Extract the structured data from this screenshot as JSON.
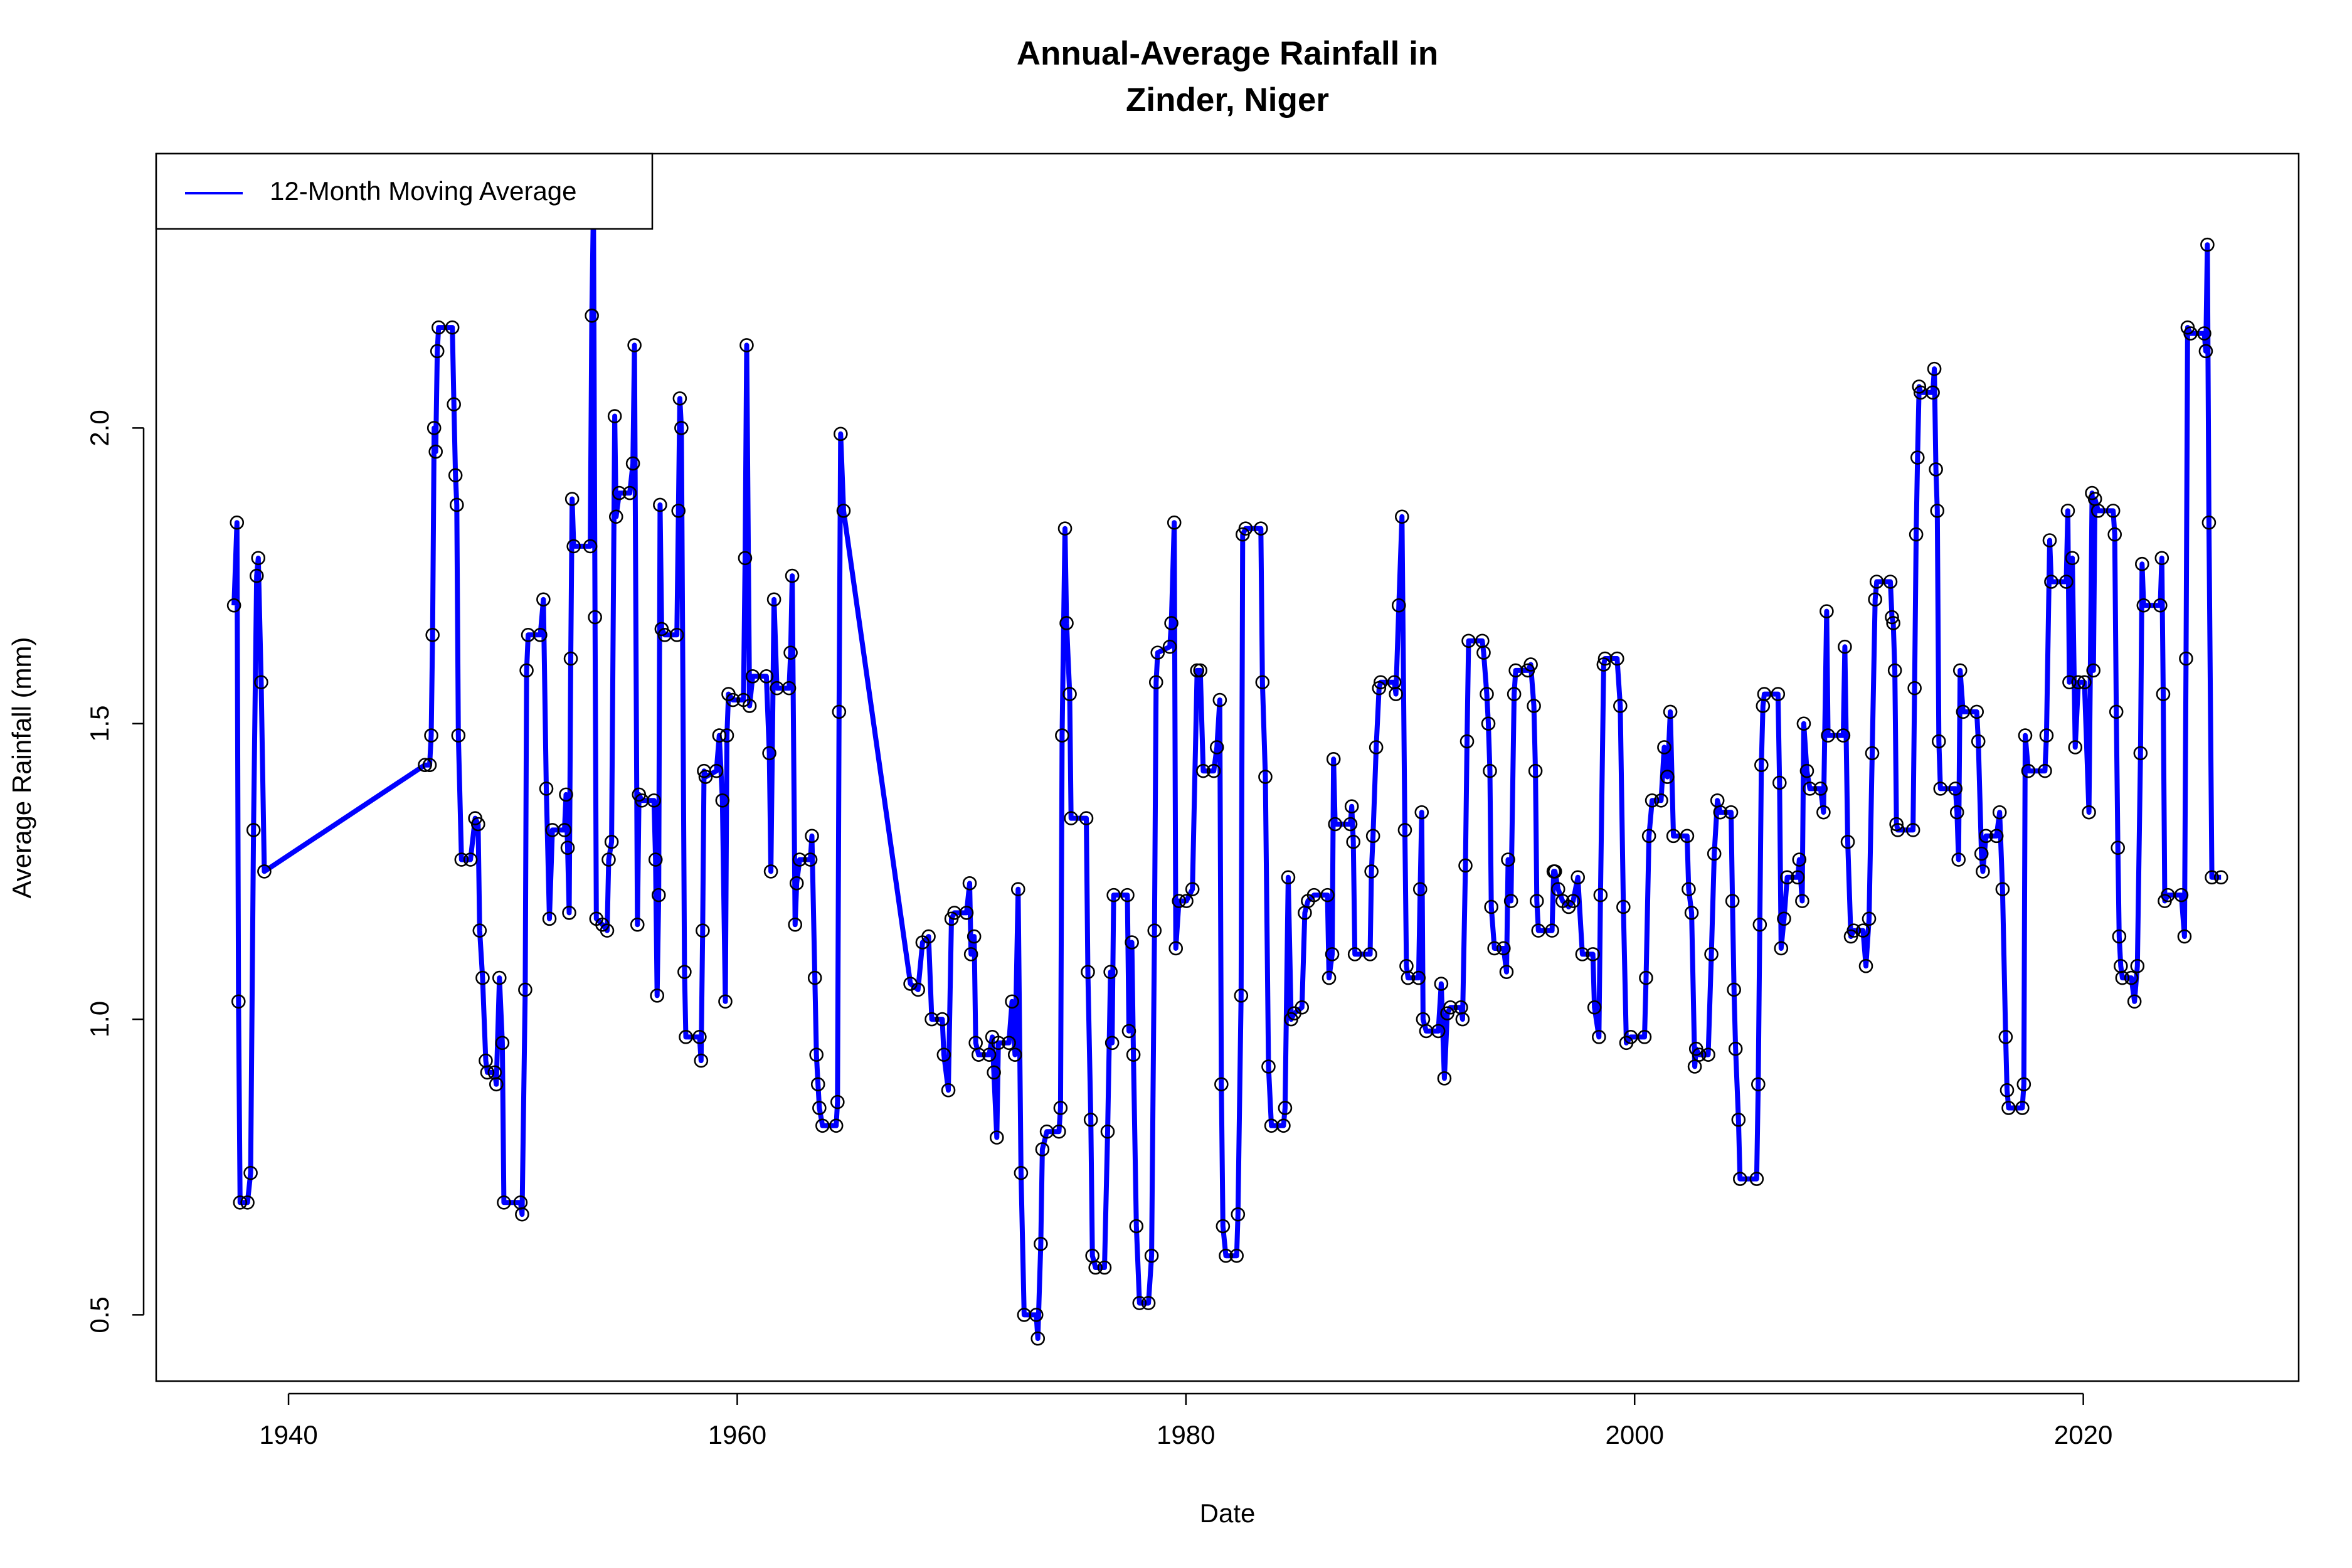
{
  "chart_data": {
    "type": "line",
    "title": [
      "Annual-Average Rainfall in",
      "Zinder, Niger"
    ],
    "x_label": "Date",
    "y_label": "Average Rainfall (mm)",
    "xlim": [
      1934.1,
      2029.6
    ],
    "ylim": [
      0.388,
      2.464
    ],
    "xticks": [
      1940,
      1960,
      1980,
      2000,
      2020
    ],
    "yticks": [
      0.5,
      {
        "value": 1,
        "label": "1.0"
      },
      1.5,
      {
        "value": 2,
        "label": "2.0"
      }
    ],
    "grid": false,
    "markers": true,
    "legend": "top-left",
    "x": [
      1937.57,
      1937.7,
      1937.77,
      1937.84,
      1938.17,
      1938.31,
      1938.44,
      1938.58,
      1938.65,
      1938.78,
      1938.92,
      1946.08,
      1946.29,
      1946.36,
      1946.42,
      1946.49,
      1946.56,
      1946.63,
      1946.69,
      1947.3,
      1947.37,
      1947.44,
      1947.5,
      1947.57,
      1947.71,
      1948.11,
      1948.32,
      1948.45,
      1948.52,
      1948.65,
      1948.79,
      1948.86,
      1949.19,
      1949.26,
      1949.4,
      1949.53,
      1949.6,
      1950.34,
      1950.41,
      1950.55,
      1950.61,
      1950.68,
      1951.22,
      1951.36,
      1951.49,
      1951.63,
      1951.76,
      1952.3,
      1952.37,
      1952.44,
      1952.51,
      1952.58,
      1952.64,
      1952.71,
      1953.45,
      1953.52,
      1953.59,
      1953.66,
      1953.72,
      1953.99,
      1954.2,
      1954.27,
      1954.4,
      1954.54,
      1954.6,
      1954.74,
      1955.21,
      1955.35,
      1955.42,
      1955.55,
      1955.62,
      1955.75,
      1956.29,
      1956.36,
      1956.43,
      1956.5,
      1956.56,
      1956.63,
      1956.77,
      1957.31,
      1957.38,
      1957.44,
      1957.51,
      1957.65,
      1957.71,
      1958.32,
      1958.39,
      1958.46,
      1958.52,
      1958.59,
      1959.07,
      1959.2,
      1959.34,
      1959.47,
      1959.54,
      1959.61,
      1959.81,
      1960.28,
      1960.35,
      1960.42,
      1960.55,
      1960.69,
      1961.3,
      1961.43,
      1961.5,
      1961.64,
      1961.77,
      1962.31,
      1962.38,
      1962.45,
      1962.58,
      1962.65,
      1962.78,
      1963.26,
      1963.33,
      1963.46,
      1963.53,
      1963.6,
      1963.66,
      1963.8,
      1964.41,
      1964.47,
      1964.54,
      1964.61,
      1964.74,
      1967.72,
      1968.06,
      1968.26,
      1968.53,
      1968.67,
      1969.14,
      1969.21,
      1969.41,
      1969.55,
      1969.68,
      1970.22,
      1970.36,
      1970.42,
      1970.56,
      1970.63,
      1970.76,
      1971.23,
      1971.37,
      1971.44,
      1971.57,
      1971.64,
      1972.11,
      1972.25,
      1972.38,
      1972.52,
      1972.65,
      1972.79,
      1973.33,
      1973.4,
      1973.53,
      1973.6,
      1973.8,
      1974.34,
      1974.41,
      1974.48,
      1974.61,
      1974.68,
      1974.82,
      1974.88,
      1975.56,
      1975.63,
      1975.76,
      1975.83,
      1975.97,
      1976.37,
      1976.51,
      1976.64,
      1976.71,
      1976.78,
      1977.39,
      1977.46,
      1977.59,
      1977.66,
      1977.79,
      1977.93,
      1978.33,
      1978.47,
      1978.6,
      1978.67,
      1978.74,
      1979.28,
      1979.35,
      1979.48,
      1979.55,
      1979.69,
      1980.02,
      1980.29,
      1980.5,
      1980.64,
      1980.77,
      1981.24,
      1981.38,
      1981.51,
      1981.58,
      1981.65,
      1981.78,
      1982.26,
      1982.32,
      1982.46,
      1982.53,
      1982.66,
      1983.34,
      1983.41,
      1983.54,
      1983.68,
      1983.81,
      1984.35,
      1984.42,
      1984.56,
      1984.69,
      1984.83,
      1985.17,
      1985.3,
      1985.44,
      1985.71,
      1986.31,
      1986.38,
      1986.52,
      1986.58,
      1986.65,
      1987.33,
      1987.39,
      1987.46,
      1987.53,
      1988.21,
      1988.27,
      1988.34,
      1988.48,
      1988.61,
      1988.68,
      1989.29,
      1989.36,
      1989.49,
      1989.63,
      1989.76,
      1989.83,
      1989.9,
      1990.37,
      1990.44,
      1990.51,
      1990.57,
      1990.71,
      1991.25,
      1991.38,
      1991.52,
      1991.65,
      1991.79,
      1992.26,
      1992.33,
      1992.46,
      1992.53,
      1992.6,
      1993.21,
      1993.27,
      1993.41,
      1993.48,
      1993.55,
      1993.61,
      1993.75,
      1994.16,
      1994.29,
      1994.36,
      1994.49,
      1994.63,
      1994.7,
      1995.24,
      1995.37,
      1995.51,
      1995.58,
      1995.64,
      1995.71,
      1996.32,
      1996.39,
      1996.45,
      1996.59,
      1996.79,
      1997.06,
      1997.26,
      1997.47,
      1997.67,
      1998.14,
      1998.21,
      1998.41,
      1998.48,
      1998.62,
      1998.68,
      1999.22,
      1999.36,
      1999.5,
      1999.63,
      1999.83,
      2000.44,
      2000.51,
      2000.64,
      2000.78,
      2001.18,
      2001.32,
      2001.46,
      2001.59,
      2001.73,
      2002.34,
      2002.41,
      2002.54,
      2002.68,
      2002.74,
      2002.88,
      2003.28,
      2003.42,
      2003.55,
      2003.69,
      2003.82,
      2004.3,
      2004.36,
      2004.43,
      2004.5,
      2004.63,
      2004.7,
      2005.44,
      2005.51,
      2005.58,
      2005.65,
      2005.72,
      2005.78,
      2006.39,
      2006.46,
      2006.53,
      2006.66,
      2006.8,
      2007.27,
      2007.34,
      2007.47,
      2007.54,
      2007.68,
      2007.81,
      2008.29,
      2008.42,
      2008.56,
      2008.62,
      2009.3,
      2009.37,
      2009.5,
      2009.64,
      2009.77,
      2010.18,
      2010.31,
      2010.45,
      2010.59,
      2010.72,
      2010.79,
      2011.4,
      2011.47,
      2011.53,
      2011.6,
      2011.67,
      2011.73,
      2012.41,
      2012.48,
      2012.55,
      2012.61,
      2012.68,
      2012.75,
      2013.29,
      2013.36,
      2013.43,
      2013.49,
      2013.56,
      2013.63,
      2014.3,
      2014.37,
      2014.44,
      2014.51,
      2014.64,
      2015.25,
      2015.32,
      2015.46,
      2015.52,
      2015.66,
      2016.13,
      2016.27,
      2016.4,
      2016.54,
      2016.6,
      2016.67,
      2017.28,
      2017.35,
      2017.41,
      2017.55,
      2018.29,
      2018.36,
      2018.5,
      2018.57,
      2019.24,
      2019.31,
      2019.38,
      2019.51,
      2019.64,
      2019.78,
      2020.05,
      2020.25,
      2020.39,
      2020.45,
      2020.52,
      2020.66,
      2021.33,
      2021.4,
      2021.47,
      2021.54,
      2021.6,
      2021.67,
      2021.74,
      2022.14,
      2022.28,
      2022.41,
      2022.55,
      2022.62,
      2022.69,
      2023.43,
      2023.5,
      2023.56,
      2023.63,
      2023.77,
      2024.37,
      2024.51,
      2024.58,
      2024.65,
      2024.78,
      2025.39,
      2025.46,
      2025.53,
      2025.6,
      2025.73,
      2026.14
    ],
    "series": [
      {
        "name": "12-Month Moving Average",
        "color": "#0000ff",
        "values": [
          1.7,
          1.84,
          1.03,
          0.69,
          0.69,
          0.74,
          1.32,
          1.75,
          1.78,
          1.57,
          1.25,
          1.43,
          1.43,
          1.48,
          1.65,
          2.0,
          1.96,
          2.13,
          2.17,
          2.17,
          2.04,
          1.92,
          1.87,
          1.48,
          1.27,
          1.27,
          1.34,
          1.33,
          1.15,
          1.07,
          0.93,
          0.91,
          0.91,
          0.89,
          1.07,
          0.96,
          0.69,
          0.69,
          0.67,
          1.05,
          1.59,
          1.65,
          1.65,
          1.71,
          1.39,
          1.17,
          1.32,
          1.32,
          1.38,
          1.29,
          1.18,
          1.61,
          1.88,
          1.8,
          1.8,
          2.19,
          2.38,
          1.68,
          1.17,
          1.16,
          1.15,
          1.27,
          1.3,
          2.02,
          1.85,
          1.89,
          1.89,
          1.94,
          2.14,
          1.16,
          1.38,
          1.37,
          1.37,
          1.27,
          1.04,
          1.21,
          1.87,
          1.66,
          1.65,
          1.65,
          1.86,
          2.05,
          2.0,
          1.08,
          0.97,
          0.97,
          0.93,
          1.15,
          1.42,
          1.41,
          1.42,
          1.48,
          1.37,
          1.03,
          1.48,
          1.55,
          1.54,
          1.54,
          1.78,
          2.14,
          1.53,
          1.58,
          1.58,
          1.45,
          1.25,
          1.71,
          1.56,
          1.56,
          1.62,
          1.75,
          1.16,
          1.23,
          1.27,
          1.27,
          1.31,
          1.07,
          0.94,
          0.89,
          0.85,
          0.82,
          0.82,
          0.86,
          1.52,
          1.99,
          1.86,
          1.06,
          1.05,
          1.13,
          1.14,
          1.0,
          1.0,
          0.94,
          0.88,
          1.17,
          1.18,
          1.18,
          1.23,
          1.11,
          1.14,
          0.96,
          0.94,
          0.94,
          0.97,
          0.91,
          0.8,
          0.96,
          0.96,
          1.03,
          0.94,
          1.22,
          0.74,
          0.5,
          0.5,
          0.46,
          0.62,
          0.78,
          0.81,
          0.81,
          0.85,
          1.48,
          1.83,
          1.67,
          1.55,
          1.34,
          1.34,
          1.08,
          0.83,
          0.6,
          0.58,
          0.58,
          0.81,
          1.08,
          0.96,
          1.21,
          1.21,
          0.98,
          1.13,
          0.94,
          0.65,
          0.52,
          0.52,
          0.6,
          1.15,
          1.57,
          1.62,
          1.63,
          1.67,
          1.84,
          1.12,
          1.2,
          1.2,
          1.22,
          1.59,
          1.59,
          1.42,
          1.42,
          1.46,
          1.54,
          0.89,
          0.65,
          0.6,
          0.6,
          0.67,
          1.04,
          1.82,
          1.83,
          1.83,
          1.57,
          1.41,
          0.92,
          0.82,
          0.82,
          0.85,
          1.24,
          1.0,
          1.01,
          1.02,
          1.18,
          1.2,
          1.21,
          1.21,
          1.07,
          1.11,
          1.44,
          1.33,
          1.33,
          1.36,
          1.3,
          1.11,
          1.11,
          1.25,
          1.31,
          1.46,
          1.56,
          1.57,
          1.57,
          1.55,
          1.7,
          1.85,
          1.32,
          1.09,
          1.07,
          1.07,
          1.22,
          1.35,
          1.0,
          0.98,
          0.98,
          1.06,
          0.9,
          1.01,
          1.02,
          1.02,
          1.0,
          1.26,
          1.47,
          1.64,
          1.64,
          1.62,
          1.55,
          1.5,
          1.42,
          1.19,
          1.12,
          1.12,
          1.08,
          1.27,
          1.2,
          1.55,
          1.59,
          1.59,
          1.6,
          1.53,
          1.42,
          1.2,
          1.15,
          1.15,
          1.25,
          1.25,
          1.22,
          1.2,
          1.19,
          1.2,
          1.24,
          1.11,
          1.11,
          1.02,
          0.97,
          1.21,
          1.6,
          1.61,
          1.61,
          1.53,
          1.19,
          0.96,
          0.97,
          0.97,
          1.07,
          1.31,
          1.37,
          1.37,
          1.46,
          1.41,
          1.52,
          1.31,
          1.31,
          1.22,
          1.18,
          0.92,
          0.95,
          0.94,
          0.94,
          1.11,
          1.28,
          1.37,
          1.35,
          1.35,
          1.2,
          1.05,
          0.95,
          0.83,
          0.73,
          0.73,
          0.89,
          1.16,
          1.43,
          1.53,
          1.55,
          1.55,
          1.4,
          1.12,
          1.17,
          1.24,
          1.24,
          1.27,
          1.2,
          1.5,
          1.42,
          1.39,
          1.39,
          1.35,
          1.69,
          1.48,
          1.48,
          1.63,
          1.3,
          1.14,
          1.15,
          1.15,
          1.09,
          1.17,
          1.45,
          1.71,
          1.74,
          1.74,
          1.68,
          1.67,
          1.59,
          1.33,
          1.32,
          1.32,
          1.56,
          1.82,
          1.95,
          2.07,
          2.06,
          2.06,
          2.1,
          1.93,
          1.86,
          1.47,
          1.39,
          1.39,
          1.35,
          1.27,
          1.59,
          1.52,
          1.52,
          1.47,
          1.28,
          1.25,
          1.31,
          1.31,
          1.35,
          1.22,
          0.97,
          0.88,
          0.85,
          0.85,
          0.89,
          1.48,
          1.42,
          1.42,
          1.48,
          1.81,
          1.74,
          1.74,
          1.86,
          1.57,
          1.78,
          1.46,
          1.57,
          1.57,
          1.35,
          1.89,
          1.59,
          1.88,
          1.86,
          1.86,
          1.82,
          1.52,
          1.29,
          1.14,
          1.09,
          1.07,
          1.07,
          1.03,
          1.09,
          1.45,
          1.77,
          1.7,
          1.7,
          1.78,
          1.55,
          1.2,
          1.21,
          1.21,
          1.14,
          1.61,
          2.17,
          2.16,
          2.16,
          2.13,
          2.31,
          1.84,
          1.24,
          1.24
        ]
      }
    ]
  }
}
